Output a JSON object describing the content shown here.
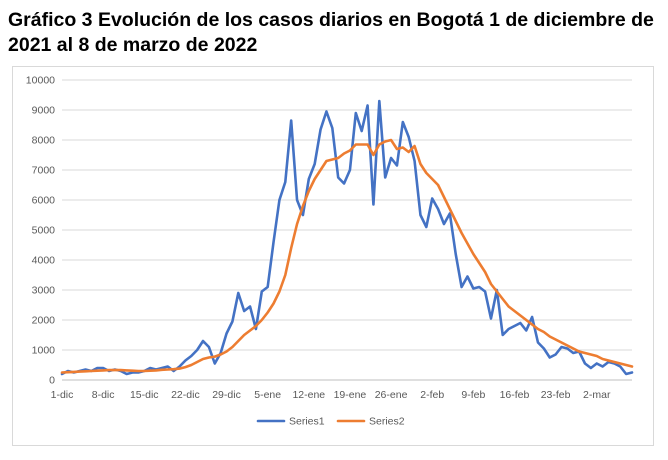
{
  "chart_data": {
    "type": "line",
    "title": "Gráfico 3 Evolución de los casos diarios en Bogotá 1 de diciembre de 2021 al 8 de marzo de 2022",
    "xlabel": "",
    "ylabel": "",
    "ylim": [
      0,
      10000
    ],
    "yticks": [
      0,
      1000,
      2000,
      3000,
      4000,
      5000,
      6000,
      7000,
      8000,
      9000,
      10000
    ],
    "xlim": [
      0,
      97
    ],
    "xticks": [
      {
        "day": 0,
        "label": "1-dic"
      },
      {
        "day": 7,
        "label": "8-dic"
      },
      {
        "day": 14,
        "label": "15-dic"
      },
      {
        "day": 21,
        "label": "22-dic"
      },
      {
        "day": 28,
        "label": "29-dic"
      },
      {
        "day": 35,
        "label": "5-ene"
      },
      {
        "day": 42,
        "label": "12-ene"
      },
      {
        "day": 49,
        "label": "19-ene"
      },
      {
        "day": 56,
        "label": "26-ene"
      },
      {
        "day": 63,
        "label": "2-feb"
      },
      {
        "day": 70,
        "label": "9-feb"
      },
      {
        "day": 77,
        "label": "16-feb"
      },
      {
        "day": 84,
        "label": "23-feb"
      },
      {
        "day": 91,
        "label": "2-mar"
      }
    ],
    "grid": true,
    "legend_position": "bottom",
    "series": [
      {
        "name": "Series1",
        "color": "#4472c4",
        "points": [
          [
            0,
            200
          ],
          [
            1,
            300
          ],
          [
            2,
            250
          ],
          [
            3,
            300
          ],
          [
            4,
            350
          ],
          [
            5,
            300
          ],
          [
            6,
            400
          ],
          [
            7,
            400
          ],
          [
            8,
            300
          ],
          [
            9,
            350
          ],
          [
            10,
            300
          ],
          [
            11,
            200
          ],
          [
            12,
            250
          ],
          [
            13,
            250
          ],
          [
            14,
            300
          ],
          [
            15,
            400
          ],
          [
            16,
            350
          ],
          [
            17,
            400
          ],
          [
            18,
            450
          ],
          [
            19,
            300
          ],
          [
            20,
            450
          ],
          [
            21,
            650
          ],
          [
            22,
            800
          ],
          [
            23,
            1000
          ],
          [
            24,
            1300
          ],
          [
            25,
            1100
          ],
          [
            26,
            550
          ],
          [
            27,
            900
          ],
          [
            28,
            1550
          ],
          [
            29,
            1950
          ],
          [
            30,
            2900
          ],
          [
            31,
            2300
          ],
          [
            32,
            2450
          ],
          [
            33,
            1700
          ],
          [
            34,
            2950
          ],
          [
            35,
            3100
          ],
          [
            36,
            4600
          ],
          [
            37,
            6000
          ],
          [
            38,
            6600
          ],
          [
            39,
            8650
          ],
          [
            40,
            6000
          ],
          [
            41,
            5500
          ],
          [
            42,
            6700
          ],
          [
            43,
            7200
          ],
          [
            44,
            8350
          ],
          [
            45,
            8950
          ],
          [
            46,
            8400
          ],
          [
            47,
            6750
          ],
          [
            48,
            6550
          ],
          [
            49,
            7000
          ],
          [
            50,
            8900
          ],
          [
            51,
            8300
          ],
          [
            52,
            9150
          ],
          [
            53,
            5850
          ],
          [
            54,
            9300
          ],
          [
            55,
            6750
          ],
          [
            56,
            7400
          ],
          [
            57,
            7150
          ],
          [
            58,
            8600
          ],
          [
            59,
            8100
          ],
          [
            60,
            7300
          ],
          [
            61,
            5500
          ],
          [
            62,
            5100
          ],
          [
            63,
            6050
          ],
          [
            64,
            5700
          ],
          [
            65,
            5200
          ],
          [
            66,
            5550
          ],
          [
            67,
            4200
          ],
          [
            68,
            3100
          ],
          [
            69,
            3450
          ],
          [
            70,
            3050
          ],
          [
            71,
            3100
          ],
          [
            72,
            2950
          ],
          [
            73,
            2050
          ],
          [
            74,
            3000
          ],
          [
            75,
            1500
          ],
          [
            76,
            1700
          ],
          [
            77,
            1800
          ],
          [
            78,
            1900
          ],
          [
            79,
            1650
          ],
          [
            80,
            2100
          ],
          [
            81,
            1250
          ],
          [
            82,
            1050
          ],
          [
            83,
            750
          ],
          [
            84,
            850
          ],
          [
            85,
            1100
          ],
          [
            86,
            1050
          ],
          [
            87,
            900
          ],
          [
            88,
            950
          ],
          [
            89,
            550
          ],
          [
            90,
            400
          ],
          [
            91,
            550
          ],
          [
            92,
            450
          ],
          [
            93,
            600
          ],
          [
            94,
            550
          ],
          [
            95,
            450
          ],
          [
            96,
            200
          ],
          [
            97,
            250
          ]
        ]
      },
      {
        "name": "Series2",
        "color": "#ed7d31",
        "points": [
          [
            0,
            250
          ],
          [
            1,
            260
          ],
          [
            2,
            270
          ],
          [
            3,
            280
          ],
          [
            4,
            290
          ],
          [
            5,
            300
          ],
          [
            6,
            310
          ],
          [
            7,
            320
          ],
          [
            8,
            330
          ],
          [
            9,
            330
          ],
          [
            10,
            330
          ],
          [
            11,
            320
          ],
          [
            12,
            310
          ],
          [
            13,
            300
          ],
          [
            14,
            300
          ],
          [
            15,
            310
          ],
          [
            16,
            320
          ],
          [
            17,
            340
          ],
          [
            18,
            350
          ],
          [
            19,
            360
          ],
          [
            20,
            380
          ],
          [
            21,
            430
          ],
          [
            22,
            500
          ],
          [
            23,
            600
          ],
          [
            24,
            700
          ],
          [
            25,
            750
          ],
          [
            26,
            780
          ],
          [
            27,
            850
          ],
          [
            28,
            950
          ],
          [
            29,
            1100
          ],
          [
            30,
            1300
          ],
          [
            31,
            1500
          ],
          [
            32,
            1650
          ],
          [
            33,
            1800
          ],
          [
            34,
            2000
          ],
          [
            35,
            2250
          ],
          [
            36,
            2550
          ],
          [
            37,
            2950
          ],
          [
            38,
            3500
          ],
          [
            39,
            4400
          ],
          [
            40,
            5200
          ],
          [
            41,
            5800
          ],
          [
            42,
            6300
          ],
          [
            43,
            6700
          ],
          [
            44,
            7000
          ],
          [
            45,
            7300
          ],
          [
            46,
            7350
          ],
          [
            47,
            7400
          ],
          [
            48,
            7550
          ],
          [
            49,
            7650
          ],
          [
            50,
            7850
          ],
          [
            51,
            7850
          ],
          [
            52,
            7850
          ],
          [
            53,
            7500
          ],
          [
            54,
            7850
          ],
          [
            55,
            7950
          ],
          [
            56,
            8000
          ],
          [
            57,
            7700
          ],
          [
            58,
            7750
          ],
          [
            59,
            7600
          ],
          [
            60,
            7800
          ],
          [
            61,
            7200
          ],
          [
            62,
            6900
          ],
          [
            63,
            6700
          ],
          [
            64,
            6500
          ],
          [
            65,
            6100
          ],
          [
            66,
            5700
          ],
          [
            67,
            5300
          ],
          [
            68,
            4900
          ],
          [
            69,
            4550
          ],
          [
            70,
            4200
          ],
          [
            71,
            3900
          ],
          [
            72,
            3600
          ],
          [
            73,
            3200
          ],
          [
            74,
            2950
          ],
          [
            75,
            2700
          ],
          [
            76,
            2450
          ],
          [
            77,
            2300
          ],
          [
            78,
            2150
          ],
          [
            79,
            2000
          ],
          [
            80,
            1850
          ],
          [
            81,
            1700
          ],
          [
            82,
            1600
          ],
          [
            83,
            1450
          ],
          [
            84,
            1350
          ],
          [
            85,
            1250
          ],
          [
            86,
            1150
          ],
          [
            87,
            1050
          ],
          [
            88,
            950
          ],
          [
            89,
            900
          ],
          [
            90,
            850
          ],
          [
            91,
            800
          ],
          [
            92,
            700
          ],
          [
            93,
            650
          ],
          [
            94,
            600
          ],
          [
            95,
            550
          ],
          [
            96,
            500
          ],
          [
            97,
            450
          ]
        ]
      }
    ]
  }
}
